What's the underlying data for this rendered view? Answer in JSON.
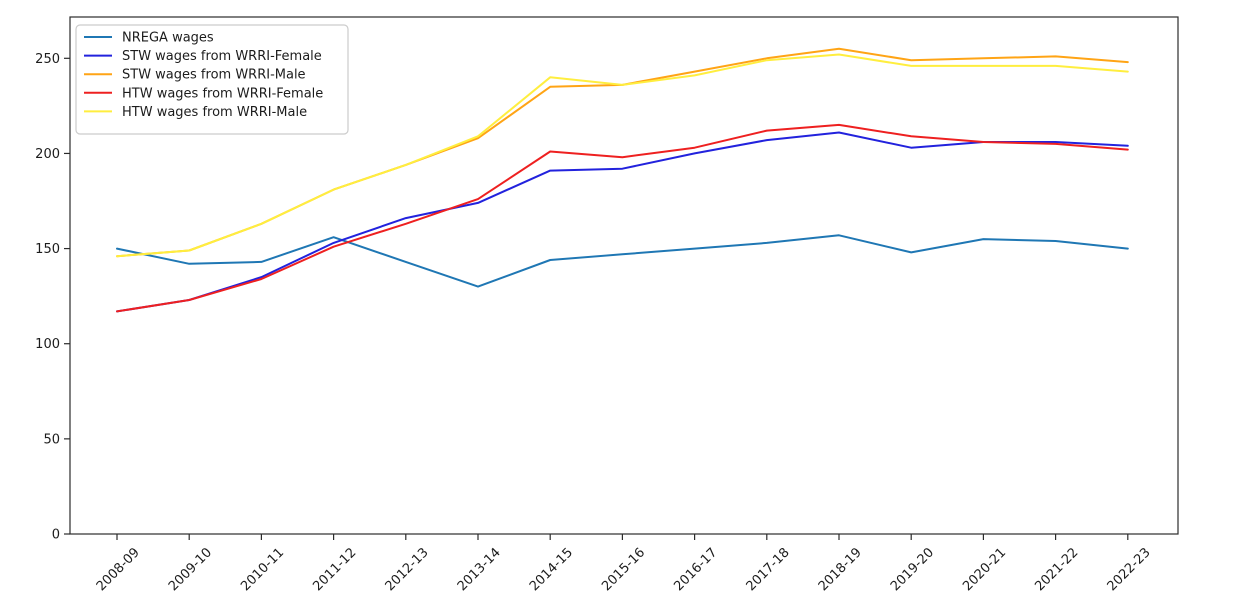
{
  "chart_data": {
    "type": "line",
    "title": "",
    "xlabel": "",
    "ylabel": "",
    "grid": false,
    "legend_position": "upper-left",
    "categories": [
      "2008-09",
      "2009-10",
      "2010-11",
      "2011-12",
      "2012-13",
      "2013-14",
      "2014-15",
      "2015-16",
      "2016-17",
      "2017-18",
      "2018-19",
      "2019-20",
      "2020-21",
      "2021-22",
      "2022-23"
    ],
    "yticks": [
      0,
      50,
      100,
      150,
      200,
      250
    ],
    "ylim": [
      0,
      272
    ],
    "series": [
      {
        "name": "NREGA wages",
        "color": "#1f77b4",
        "values": [
          150,
          142,
          143,
          156,
          143,
          130,
          144,
          147,
          150,
          153,
          157,
          148,
          155,
          154,
          150
        ]
      },
      {
        "name": "STW wages from WRRI-Female",
        "color": "#2222dd",
        "values": [
          117,
          123,
          135,
          153,
          166,
          174,
          191,
          192,
          200,
          207,
          211,
          203,
          206,
          206,
          204
        ]
      },
      {
        "name": "STW wages from WRRI-Male",
        "color": "#ffa415",
        "values": [
          146,
          149,
          163,
          181,
          194,
          208,
          235,
          236,
          243,
          250,
          255,
          249,
          250,
          251,
          248
        ]
      },
      {
        "name": "HTW wages from WRRI-Female",
        "color": "#ee2020",
        "values": [
          117,
          123,
          134,
          151,
          163,
          176,
          201,
          198,
          203,
          212,
          215,
          209,
          206,
          205,
          202
        ]
      },
      {
        "name": "HTW wages from WRRI-Male",
        "color": "#ffee3f",
        "values": [
          146,
          149,
          163,
          181,
          194,
          209,
          240,
          236,
          241,
          249,
          252,
          246,
          246,
          246,
          243
        ]
      }
    ],
    "axis_color": "#2b2b2b",
    "legend_border_color": "#cccccc"
  }
}
